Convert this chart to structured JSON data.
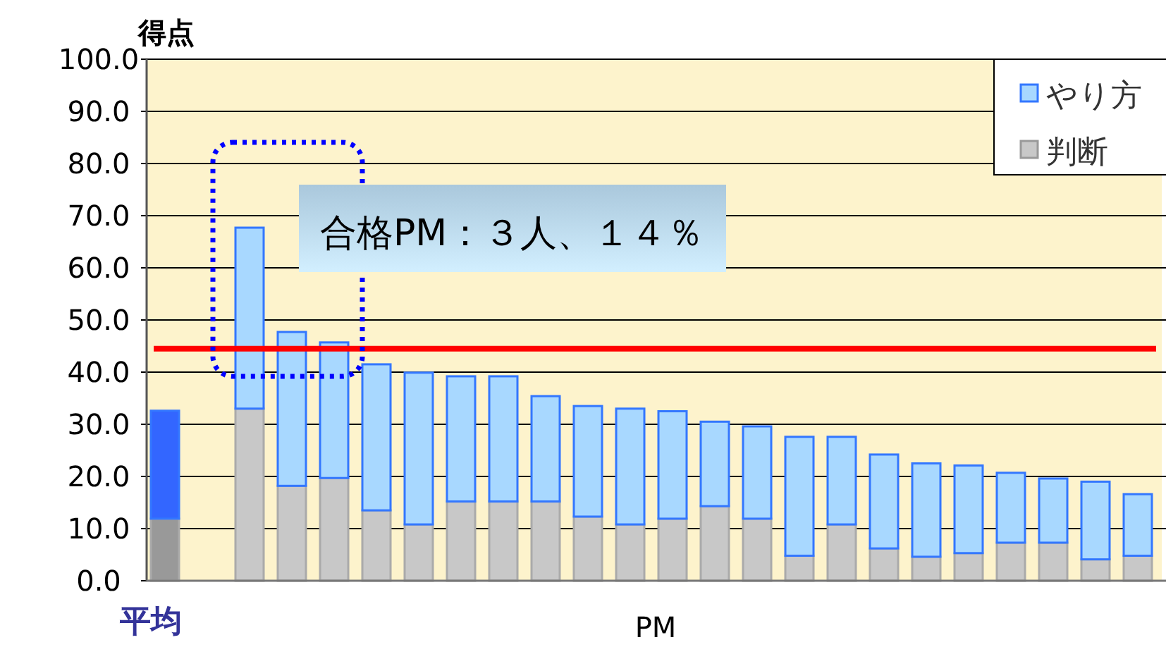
{
  "chart_data": {
    "type": "bar",
    "stacked": true,
    "ylabel": "得点",
    "xlabel": "PM",
    "categories": [
      "平均",
      null,
      null,
      null,
      null,
      null,
      null,
      null,
      null,
      null,
      null,
      null,
      null,
      null,
      null,
      null,
      null,
      null,
      null,
      null,
      null,
      null,
      null,
      null
    ],
    "series": [
      {
        "name": "判断",
        "color": "#c8c8c8",
        "colors": [
          "#999999",
          null,
          "#c8c8c8",
          "#c8c8c8",
          "#c8c8c8",
          "#c8c8c8",
          "#c8c8c8",
          "#c8c8c8",
          "#c8c8c8",
          "#c8c8c8",
          "#c8c8c8",
          "#c8c8c8",
          "#c8c8c8",
          "#c8c8c8",
          "#c8c8c8",
          "#c8c8c8",
          "#c8c8c8",
          "#c8c8c8",
          "#c8c8c8",
          "#c8c8c8",
          "#c8c8c8",
          "#c8c8c8",
          "#c8c8c8",
          "#c8c8c8"
        ],
        "values": [
          11.9,
          null,
          33.0,
          18.2,
          19.7,
          13.5,
          10.8,
          15.2,
          15.2,
          15.2,
          12.3,
          10.8,
          11.9,
          14.3,
          11.9,
          4.8,
          10.8,
          6.2,
          4.6,
          5.3,
          7.3,
          7.3,
          4.1,
          4.8
        ]
      },
      {
        "name": "やり方",
        "color": "#a8d8ff",
        "colors": [
          "#3366ff",
          null,
          "#a8d8ff",
          "#a8d8ff",
          "#a8d8ff",
          "#a8d8ff",
          "#a8d8ff",
          "#a8d8ff",
          "#a8d8ff",
          "#a8d8ff",
          "#a8d8ff",
          "#a8d8ff",
          "#a8d8ff",
          "#a8d8ff",
          "#a8d8ff",
          "#a8d8ff",
          "#a8d8ff",
          "#a8d8ff",
          "#a8d8ff",
          "#a8d8ff",
          "#a8d8ff",
          "#a8d8ff",
          "#a8d8ff",
          "#a8d8ff"
        ],
        "values": [
          20.7,
          null,
          34.7,
          29.5,
          26.0,
          28.0,
          29.1,
          24.0,
          24.0,
          20.2,
          21.2,
          22.2,
          20.6,
          16.2,
          17.7,
          22.8,
          16.8,
          18.0,
          17.9,
          16.8,
          13.4,
          12.3,
          14.9,
          11.8
        ]
      }
    ],
    "ylim": [
      0,
      100
    ],
    "yticks": [
      {
        "value": 0,
        "label": "0.0"
      },
      {
        "value": 10,
        "label": "10.0"
      },
      {
        "value": 20,
        "label": "20.0"
      },
      {
        "value": 30,
        "label": "30.0"
      },
      {
        "value": 40,
        "label": "40.0"
      },
      {
        "value": 50,
        "label": "50.0"
      },
      {
        "value": 60,
        "label": "60.0"
      },
      {
        "value": 70,
        "label": "70.0"
      },
      {
        "value": 80,
        "label": "80.0"
      },
      {
        "value": 90,
        "label": "90.0"
      },
      {
        "value": 100,
        "label": "100.0"
      }
    ],
    "grid": "y",
    "legend": "top right",
    "ref_lines": [
      {
        "axis": "y",
        "value": 44.5,
        "color": "#ff0000"
      }
    ],
    "annotations": [
      "合格PM：３人、１４％"
    ]
  }
}
